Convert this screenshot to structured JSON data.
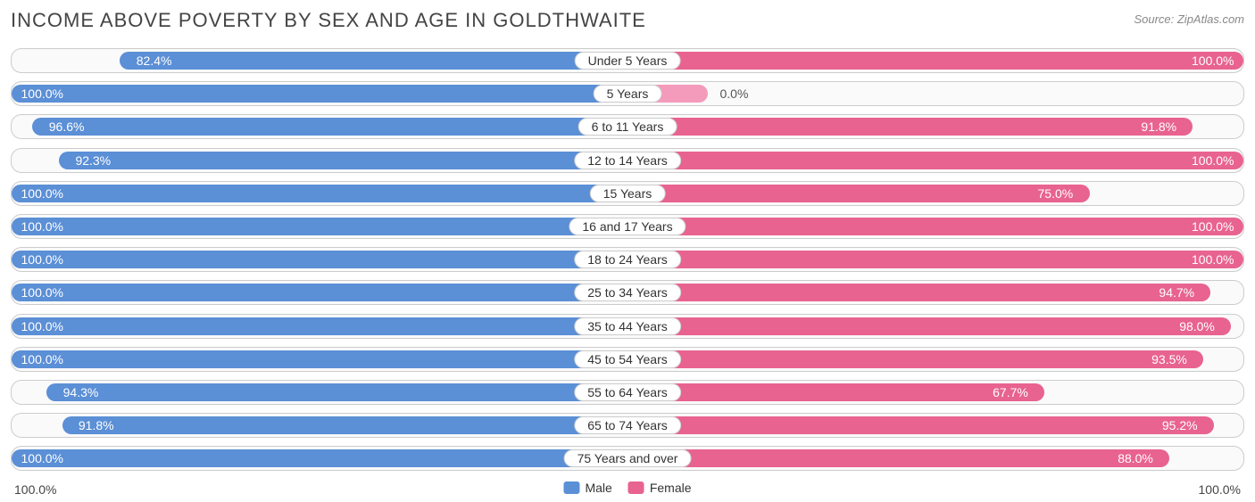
{
  "title": "INCOME ABOVE POVERTY BY SEX AND AGE IN GOLDTHWAITE",
  "source": "Source: ZipAtlas.com",
  "colors": {
    "male": "#5b8fd6",
    "female": "#e8638f",
    "female_zero": "#f49bbb",
    "row_bg": "#fafafa",
    "row_border": "#cccccc",
    "text": "#444444"
  },
  "axis": {
    "left": "100.0%",
    "right": "100.0%"
  },
  "legend": {
    "male": "Male",
    "female": "Female"
  },
  "label_fontsize": 14,
  "categories": [
    {
      "label": "Under 5 Years",
      "male": 82.4,
      "female": 100.0
    },
    {
      "label": "5 Years",
      "male": 100.0,
      "female": 0.0,
      "female_stub": 13
    },
    {
      "label": "6 to 11 Years",
      "male": 96.6,
      "female": 91.8
    },
    {
      "label": "12 to 14 Years",
      "male": 92.3,
      "female": 100.0
    },
    {
      "label": "15 Years",
      "male": 100.0,
      "female": 75.0
    },
    {
      "label": "16 and 17 Years",
      "male": 100.0,
      "female": 100.0
    },
    {
      "label": "18 to 24 Years",
      "male": 100.0,
      "female": 100.0
    },
    {
      "label": "25 to 34 Years",
      "male": 100.0,
      "female": 94.7
    },
    {
      "label": "35 to 44 Years",
      "male": 100.0,
      "female": 98.0
    },
    {
      "label": "45 to 54 Years",
      "male": 100.0,
      "female": 93.5
    },
    {
      "label": "55 to 64 Years",
      "male": 94.3,
      "female": 67.7
    },
    {
      "label": "65 to 74 Years",
      "male": 91.8,
      "female": 95.2
    },
    {
      "label": "75 Years and over",
      "male": 100.0,
      "female": 88.0
    }
  ]
}
